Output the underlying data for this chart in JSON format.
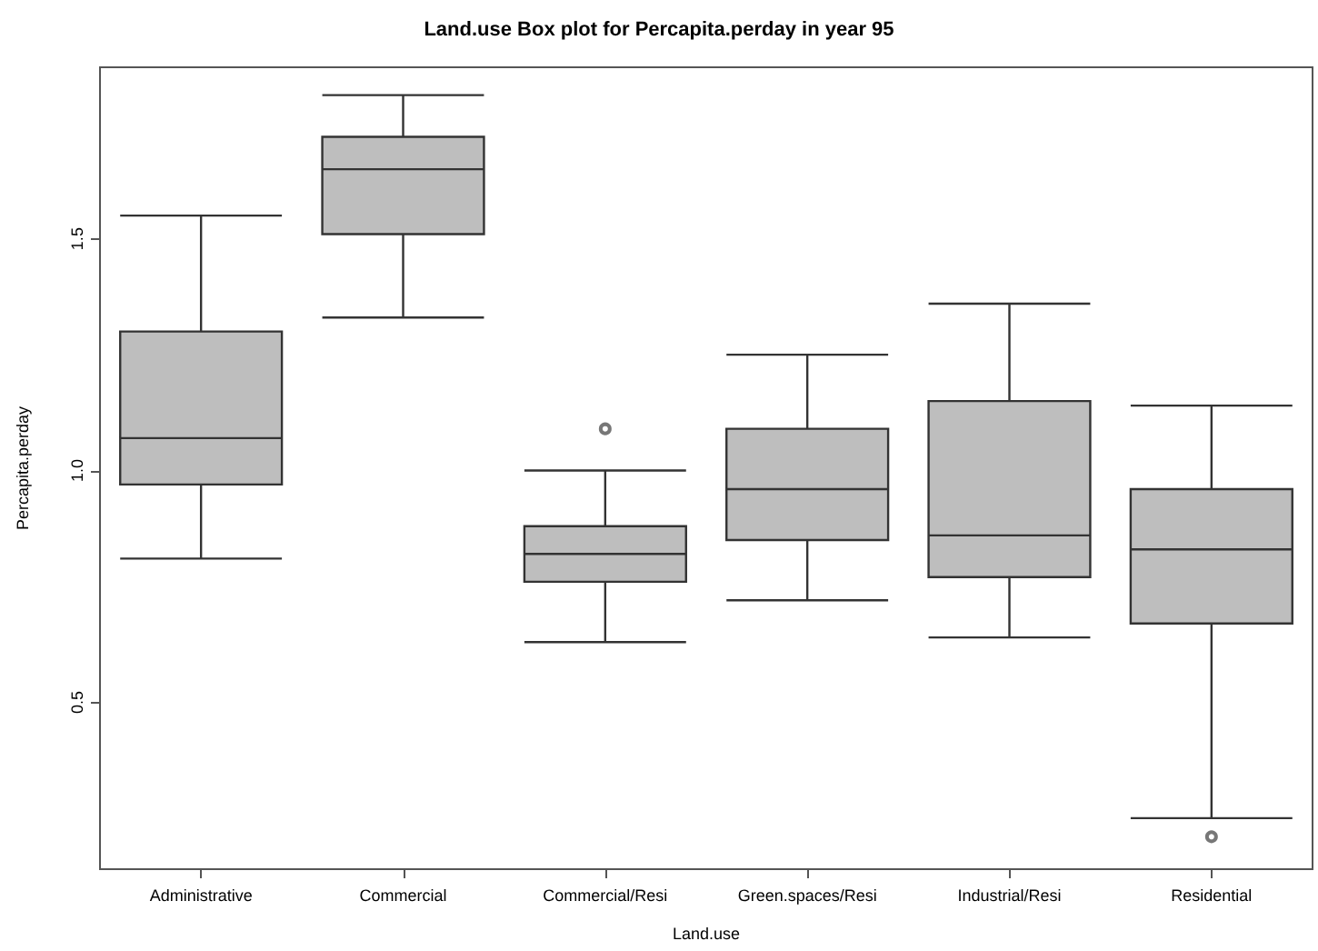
{
  "chart_data": {
    "type": "box",
    "title": "Land.use Box plot for Percapita.perday in year 95",
    "xlabel": "Land.use",
    "ylabel": "Percapita.perday",
    "categories": [
      "Administrative",
      "Commercial",
      "Commercial/Resi",
      "Green.spaces/Resi",
      "Industrial/Resi",
      "Residential"
    ],
    "color": "#bebebe",
    "boxes": [
      {
        "low": 0.81,
        "q1": 0.97,
        "median": 1.07,
        "q3": 1.3,
        "high": 1.55
      },
      {
        "low": 1.33,
        "q1": 1.51,
        "median": 1.65,
        "q3": 1.72,
        "high": 1.81
      },
      {
        "low": 0.63,
        "q1": 0.76,
        "median": 0.82,
        "q3": 0.88,
        "high": 1.0,
        "outliers": [
          1.09
        ]
      },
      {
        "low": 0.72,
        "q1": 0.85,
        "median": 0.96,
        "q3": 1.09,
        "high": 1.25
      },
      {
        "low": 0.64,
        "q1": 0.77,
        "median": 0.86,
        "q3": 1.15,
        "high": 1.36
      },
      {
        "low": 0.25,
        "q1": 0.67,
        "median": 0.83,
        "q3": 0.96,
        "high": 1.14,
        "outliers": [
          0.21
        ]
      }
    ],
    "ylim": [
      0.14,
      1.87
    ],
    "yticks": [
      {
        "value": 0.5,
        "label": "0.5"
      },
      {
        "value": 1,
        "label": "1.0"
      },
      {
        "value": 1.5,
        "label": "1.5"
      }
    ],
    "grid": false
  }
}
